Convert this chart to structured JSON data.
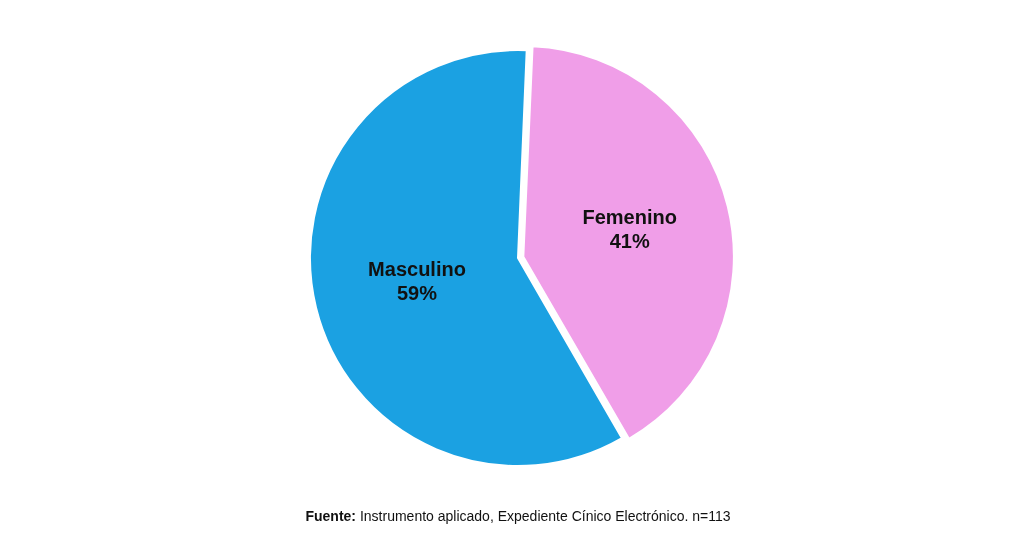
{
  "chart_data": {
    "type": "pie",
    "categories": [
      "Masculino",
      "Femenino"
    ],
    "values": [
      59,
      41
    ],
    "colors": [
      "#1ba1e2",
      "#f09ee8"
    ],
    "value_labels": [
      "59%",
      "41%"
    ],
    "legend": false,
    "annotations": [
      "Fuente: Instrumento aplicado, Expediente Cínico Electrónico. n=113"
    ]
  }
}
